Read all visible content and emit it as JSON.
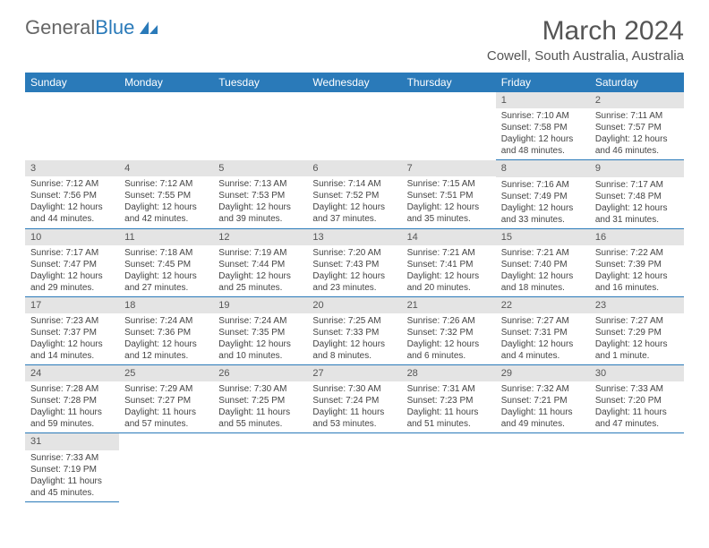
{
  "logo": {
    "text1": "General",
    "text2": "Blue",
    "icon_color": "#2a7ab9"
  },
  "title": "March 2024",
  "location": "Cowell, South Australia, Australia",
  "colors": {
    "header_bg": "#2a7ab9",
    "header_text": "#ffffff",
    "daynum_bg": "#e4e4e4",
    "row_border": "#2a7ab9",
    "text": "#444444"
  },
  "dayHeaders": [
    "Sunday",
    "Monday",
    "Tuesday",
    "Wednesday",
    "Thursday",
    "Friday",
    "Saturday"
  ],
  "weeks": [
    [
      null,
      null,
      null,
      null,
      null,
      {
        "n": "1",
        "sunrise": "7:10 AM",
        "sunset": "7:58 PM",
        "dlh": 12,
        "dlm": 48
      },
      {
        "n": "2",
        "sunrise": "7:11 AM",
        "sunset": "7:57 PM",
        "dlh": 12,
        "dlm": 46
      }
    ],
    [
      {
        "n": "3",
        "sunrise": "7:12 AM",
        "sunset": "7:56 PM",
        "dlh": 12,
        "dlm": 44
      },
      {
        "n": "4",
        "sunrise": "7:12 AM",
        "sunset": "7:55 PM",
        "dlh": 12,
        "dlm": 42
      },
      {
        "n": "5",
        "sunrise": "7:13 AM",
        "sunset": "7:53 PM",
        "dlh": 12,
        "dlm": 39
      },
      {
        "n": "6",
        "sunrise": "7:14 AM",
        "sunset": "7:52 PM",
        "dlh": 12,
        "dlm": 37
      },
      {
        "n": "7",
        "sunrise": "7:15 AM",
        "sunset": "7:51 PM",
        "dlh": 12,
        "dlm": 35
      },
      {
        "n": "8",
        "sunrise": "7:16 AM",
        "sunset": "7:49 PM",
        "dlh": 12,
        "dlm": 33
      },
      {
        "n": "9",
        "sunrise": "7:17 AM",
        "sunset": "7:48 PM",
        "dlh": 12,
        "dlm": 31
      }
    ],
    [
      {
        "n": "10",
        "sunrise": "7:17 AM",
        "sunset": "7:47 PM",
        "dlh": 12,
        "dlm": 29
      },
      {
        "n": "11",
        "sunrise": "7:18 AM",
        "sunset": "7:45 PM",
        "dlh": 12,
        "dlm": 27
      },
      {
        "n": "12",
        "sunrise": "7:19 AM",
        "sunset": "7:44 PM",
        "dlh": 12,
        "dlm": 25
      },
      {
        "n": "13",
        "sunrise": "7:20 AM",
        "sunset": "7:43 PM",
        "dlh": 12,
        "dlm": 23
      },
      {
        "n": "14",
        "sunrise": "7:21 AM",
        "sunset": "7:41 PM",
        "dlh": 12,
        "dlm": 20
      },
      {
        "n": "15",
        "sunrise": "7:21 AM",
        "sunset": "7:40 PM",
        "dlh": 12,
        "dlm": 18
      },
      {
        "n": "16",
        "sunrise": "7:22 AM",
        "sunset": "7:39 PM",
        "dlh": 12,
        "dlm": 16
      }
    ],
    [
      {
        "n": "17",
        "sunrise": "7:23 AM",
        "sunset": "7:37 PM",
        "dlh": 12,
        "dlm": 14
      },
      {
        "n": "18",
        "sunrise": "7:24 AM",
        "sunset": "7:36 PM",
        "dlh": 12,
        "dlm": 12
      },
      {
        "n": "19",
        "sunrise": "7:24 AM",
        "sunset": "7:35 PM",
        "dlh": 12,
        "dlm": 10
      },
      {
        "n": "20",
        "sunrise": "7:25 AM",
        "sunset": "7:33 PM",
        "dlh": 12,
        "dlm": 8
      },
      {
        "n": "21",
        "sunrise": "7:26 AM",
        "sunset": "7:32 PM",
        "dlh": 12,
        "dlm": 6
      },
      {
        "n": "22",
        "sunrise": "7:27 AM",
        "sunset": "7:31 PM",
        "dlh": 12,
        "dlm": 4
      },
      {
        "n": "23",
        "sunrise": "7:27 AM",
        "sunset": "7:29 PM",
        "dlh": 12,
        "dlm": 1
      }
    ],
    [
      {
        "n": "24",
        "sunrise": "7:28 AM",
        "sunset": "7:28 PM",
        "dlh": 11,
        "dlm": 59
      },
      {
        "n": "25",
        "sunrise": "7:29 AM",
        "sunset": "7:27 PM",
        "dlh": 11,
        "dlm": 57
      },
      {
        "n": "26",
        "sunrise": "7:30 AM",
        "sunset": "7:25 PM",
        "dlh": 11,
        "dlm": 55
      },
      {
        "n": "27",
        "sunrise": "7:30 AM",
        "sunset": "7:24 PM",
        "dlh": 11,
        "dlm": 53
      },
      {
        "n": "28",
        "sunrise": "7:31 AM",
        "sunset": "7:23 PM",
        "dlh": 11,
        "dlm": 51
      },
      {
        "n": "29",
        "sunrise": "7:32 AM",
        "sunset": "7:21 PM",
        "dlh": 11,
        "dlm": 49
      },
      {
        "n": "30",
        "sunrise": "7:33 AM",
        "sunset": "7:20 PM",
        "dlh": 11,
        "dlm": 47
      }
    ],
    [
      {
        "n": "31",
        "sunrise": "7:33 AM",
        "sunset": "7:19 PM",
        "dlh": 11,
        "dlm": 45
      },
      null,
      null,
      null,
      null,
      null,
      null
    ]
  ],
  "labels": {
    "sunrise": "Sunrise:",
    "sunset": "Sunset:",
    "daylight_prefix": "Daylight:",
    "hours_word": "hours",
    "and_word": "and",
    "minutes_word": "minutes.",
    "minute_word": "minute."
  }
}
